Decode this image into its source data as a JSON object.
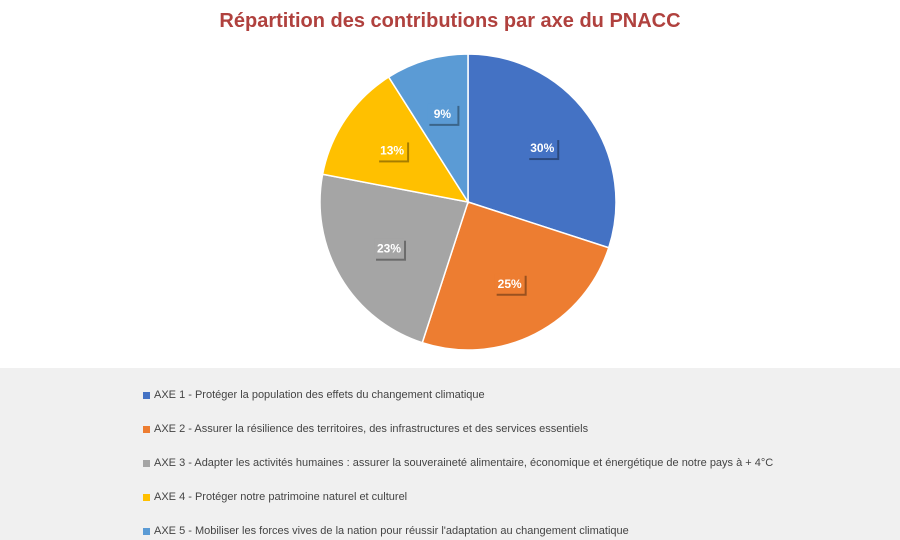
{
  "chart_data": {
    "type": "pie",
    "title": "Répartition des contributions par axe du PNACC",
    "categories": [
      "AXE 1 - Protéger la population des effets du changement climatique",
      "AXE 2 - Assurer la résilience des territoires, des infrastructures et des services essentiels",
      "AXE 3 - Adapter les activités humaines : assurer la souveraineté alimentaire, économique et énergétique de notre pays à + 4°C",
      "AXE 4 - Protéger notre patrimoine naturel et culturel",
      "AXE 5 - Mobiliser les forces vives de la nation pour réussir l'adaptation au changement climatique"
    ],
    "values": [
      30,
      25,
      23,
      13,
      9
    ],
    "data_labels": [
      "30%",
      "25%",
      "23%",
      "13%",
      "9%"
    ],
    "colors": [
      "#4472c4",
      "#ed7d31",
      "#a5a5a5",
      "#ffc000",
      "#5b9bd5"
    ],
    "legend_position": "bottom"
  }
}
